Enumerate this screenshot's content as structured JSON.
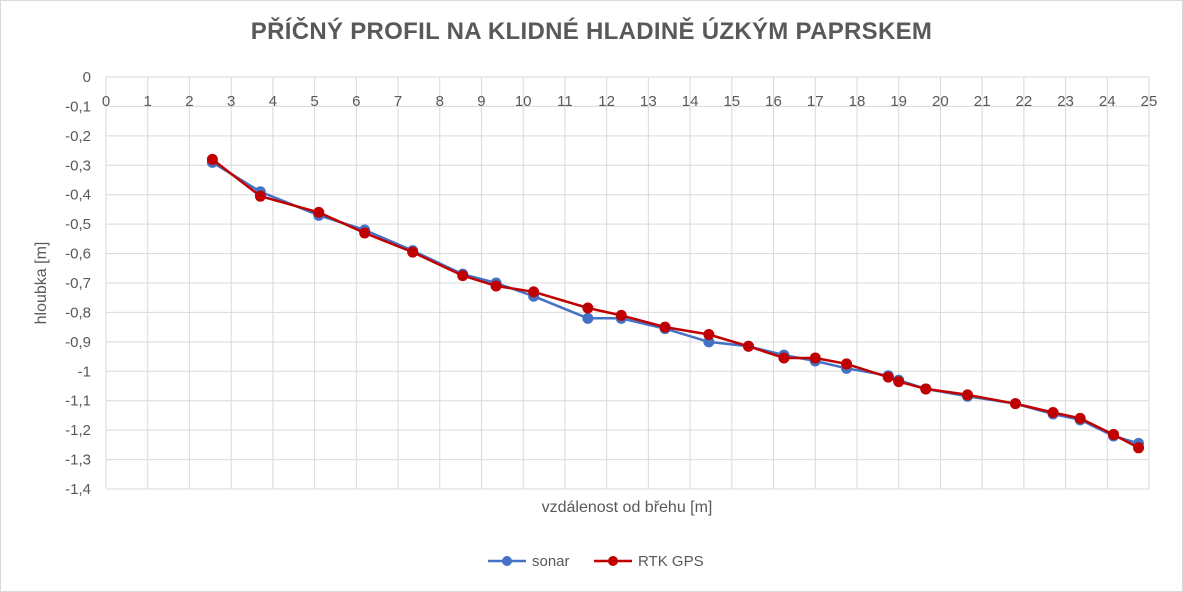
{
  "chart_data": {
    "type": "line",
    "title": "PŘÍČNÝ PROFIL NA KLIDNÉ HLADINĚ ÚZKÝM PAPRSKEM",
    "xlabel": "vzdálenost od břehu [m]",
    "ylabel": "hloubka [m]",
    "xlim": [
      0,
      25
    ],
    "ylim": [
      -1.4,
      0
    ],
    "x_ticks": [
      "0",
      "1",
      "2",
      "3",
      "4",
      "5",
      "6",
      "7",
      "8",
      "9",
      "10",
      "11",
      "12",
      "13",
      "14",
      "15",
      "16",
      "17",
      "18",
      "19",
      "20",
      "21",
      "22",
      "23",
      "24",
      "25"
    ],
    "y_ticks": [
      "0",
      "-0,1",
      "-0,2",
      "-0,3",
      "-0,4",
      "-0,5",
      "-0,6",
      "-0,7",
      "-0,8",
      "-0,9",
      "-1",
      "-1,1",
      "-1,2",
      "-1,3",
      "-1,4"
    ],
    "grid": true,
    "legend_position": "bottom",
    "series": [
      {
        "name": "sonar",
        "color": "#4472c4",
        "x": [
          2.55,
          3.7,
          5.1,
          6.2,
          7.35,
          8.55,
          9.35,
          10.25,
          11.55,
          12.35,
          13.4,
          14.45,
          15.4,
          16.25,
          17.0,
          17.75,
          18.75,
          19.0,
          19.65,
          20.65,
          21.8,
          22.7,
          23.35,
          24.15,
          24.75
        ],
        "y": [
          -0.29,
          -0.39,
          -0.47,
          -0.52,
          -0.59,
          -0.67,
          -0.7,
          -0.745,
          -0.82,
          -0.82,
          -0.855,
          -0.9,
          -0.915,
          -0.945,
          -0.965,
          -0.99,
          -1.015,
          -1.03,
          -1.06,
          -1.085,
          -1.11,
          -1.145,
          -1.165,
          -1.22,
          -1.245
        ]
      },
      {
        "name": "RTK GPS",
        "color": "#c00000",
        "x": [
          2.55,
          3.7,
          5.1,
          6.2,
          7.35,
          8.55,
          9.35,
          10.25,
          11.55,
          12.35,
          13.4,
          14.45,
          15.4,
          16.25,
          17.0,
          17.75,
          18.75,
          19.0,
          19.65,
          20.65,
          21.8,
          22.7,
          23.35,
          24.15,
          24.75
        ],
        "y": [
          -0.28,
          -0.405,
          -0.46,
          -0.53,
          -0.595,
          -0.675,
          -0.71,
          -0.73,
          -0.785,
          -0.81,
          -0.85,
          -0.875,
          -0.915,
          -0.955,
          -0.955,
          -0.975,
          -1.02,
          -1.035,
          -1.06,
          -1.08,
          -1.11,
          -1.14,
          -1.16,
          -1.215,
          -1.26
        ]
      }
    ]
  }
}
